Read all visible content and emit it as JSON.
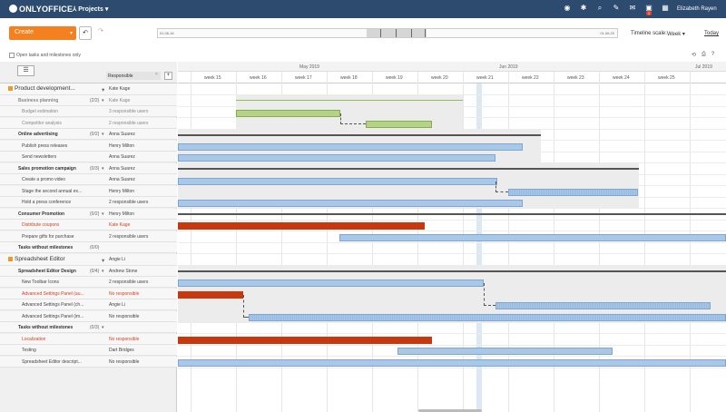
{
  "topbar": {
    "logo": "ONLYOFFICE",
    "module": "Projects",
    "module_caret": "▾",
    "user": "Elizabeth Rayen",
    "notifications_count": "1",
    "icons": [
      "help-icon",
      "settings-icon",
      "search-icon",
      "feed-icon",
      "mail-icon",
      "notifications-icon",
      "calendar-icon"
    ]
  },
  "toolbar": {
    "create_label": "Create",
    "timeline_start": "01.06.16",
    "timeline_end": "01.06.20",
    "timeline_scale_label": "Timeline scale:",
    "timeline_scale_value": "Week",
    "today_label": "Today"
  },
  "filter": {
    "label": "Open tasks and milestones only"
  },
  "left_header": {
    "responsible_label": "Responsible",
    "add_label": "+",
    "remove_label": "×"
  },
  "rows": [
    {
      "kind": "project",
      "name": "Product development...",
      "count": "",
      "caret": "▾",
      "resp": "Kate Kage"
    },
    {
      "kind": "ms",
      "name": "Business planning",
      "count": "(2/2)",
      "caret": "▾",
      "resp": "Kate Kage",
      "grey": true
    },
    {
      "kind": "task",
      "name": "Budget estimation",
      "count": "",
      "caret": "",
      "resp": "3 responsible users",
      "grey": true
    },
    {
      "kind": "task",
      "name": "Competitor analysis",
      "count": "",
      "caret": "",
      "resp": "2 responsible users",
      "grey": true
    },
    {
      "kind": "ms",
      "name": "Online advertising",
      "count": "(0/2)",
      "caret": "▾",
      "resp": "Anna Suarez"
    },
    {
      "kind": "task",
      "name": "Publish press releases",
      "count": "",
      "caret": "",
      "resp": "Henry Milton"
    },
    {
      "kind": "task",
      "name": "Send newsletters",
      "count": "",
      "caret": "",
      "resp": "Anna Suarez"
    },
    {
      "kind": "ms",
      "name": "Sales promotion campaign",
      "count": "(0/3)",
      "caret": "▾",
      "resp": "Anna Suarez"
    },
    {
      "kind": "task",
      "name": "Create a promo video",
      "count": "",
      "caret": "",
      "resp": "Anna Suarez"
    },
    {
      "kind": "task",
      "name": "Stage the second annual ex...",
      "count": "",
      "caret": "",
      "resp": "Henry Milton"
    },
    {
      "kind": "task",
      "name": "Hold a press conference",
      "count": "",
      "caret": "",
      "resp": "2 responsible users"
    },
    {
      "kind": "ms",
      "name": "Consumer Promotion",
      "count": "(0/2)",
      "caret": "▾",
      "resp": "Henry Milton"
    },
    {
      "kind": "task",
      "name": "Distribute coupons",
      "count": "",
      "caret": "",
      "resp": "Kate Kage",
      "red": true
    },
    {
      "kind": "task",
      "name": "Prepare gifts for purchase",
      "count": "",
      "caret": "",
      "resp": "2 responsible users"
    },
    {
      "kind": "ms",
      "name": "Tasks without milestones",
      "count": "(0/0)",
      "caret": "",
      "resp": ""
    },
    {
      "kind": "project",
      "name": "Spreadsheet Editor",
      "count": "",
      "caret": "▾",
      "resp": "Angie Li"
    },
    {
      "kind": "ms",
      "name": "Spreadsheet Editor Design",
      "count": "(0/4)",
      "caret": "▾",
      "resp": "Andrew Stone"
    },
    {
      "kind": "task",
      "name": "New Toolbar Icons",
      "count": "",
      "caret": "",
      "resp": "2 responsible users"
    },
    {
      "kind": "task",
      "name": "Advanced Settings Panel (au...",
      "count": "",
      "caret": "",
      "resp": "No responsible",
      "red": true
    },
    {
      "kind": "task",
      "name": "Advanced Settings Panel (ch...",
      "count": "",
      "caret": "",
      "resp": "Angie Li"
    },
    {
      "kind": "task",
      "name": "Advanced Settings Panel (im...",
      "count": "",
      "caret": "",
      "resp": "No responsible"
    },
    {
      "kind": "ms",
      "name": "Tasks without milestones",
      "count": "(0/3)",
      "caret": "▾",
      "resp": ""
    },
    {
      "kind": "task",
      "name": "Localization",
      "count": "",
      "caret": "",
      "resp": "No responsible",
      "red": true
    },
    {
      "kind": "task",
      "name": "Testing",
      "count": "",
      "caret": "",
      "resp": "Dart Bridges"
    },
    {
      "kind": "task",
      "name": "Spreadsheet Editor descript...",
      "count": "",
      "caret": "",
      "resp": "No responsible"
    }
  ],
  "timeline_header": {
    "months": [
      "May 2019",
      "Jun 2019",
      "Jul 2019"
    ],
    "weeks": [
      "week 15",
      "week 16",
      "week 17",
      "week 18",
      "week 19",
      "week 20",
      "week 21",
      "week 22",
      "week 23",
      "week 24",
      "week 25"
    ]
  },
  "colors": {
    "topbar": "#2c4b6f",
    "create_button": "#f5801f",
    "task_bar": "#a9c8e8",
    "milestone_done_bar": "#b5d384",
    "overdue_bar": "#c9370f"
  }
}
